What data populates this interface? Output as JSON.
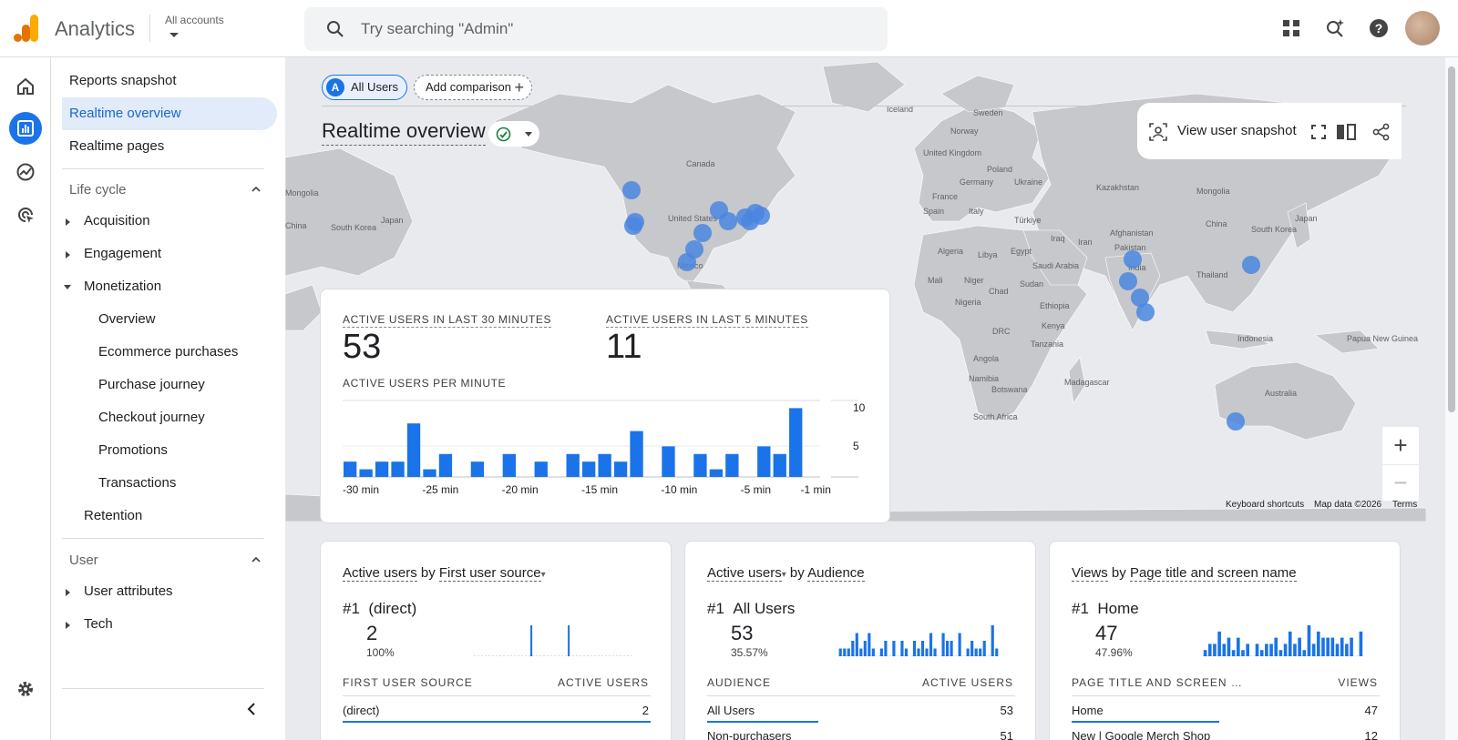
{
  "header": {
    "app_title": "Analytics",
    "account_label": "All accounts",
    "search_placeholder": "Try searching \"Admin\""
  },
  "nav": {
    "items": {
      "reports_snapshot": "Reports snapshot",
      "realtime_overview": "Realtime overview",
      "realtime_pages": "Realtime pages",
      "life_cycle": "Life cycle",
      "acquisition": "Acquisition",
      "engagement": "Engagement",
      "monetization": "Monetization",
      "overview": "Overview",
      "ecommerce_purchases": "Ecommerce purchases",
      "purchase_journey": "Purchase journey",
      "checkout_journey": "Checkout journey",
      "promotions": "Promotions",
      "transactions": "Transactions",
      "retention": "Retention",
      "user": "User",
      "user_attributes": "User attributes",
      "tech": "Tech"
    }
  },
  "main": {
    "chips": {
      "all_users_badge": "A",
      "all_users": "All Users",
      "add_comparison": "Add comparison"
    },
    "title": "Realtime overview",
    "toolbar": {
      "view_snapshot": "View user snapshot"
    },
    "map_footer": {
      "shortcuts": "Keyboard shortcuts",
      "map_data": "Map data ©2026",
      "terms": "Terms"
    },
    "map_labels": [
      {
        "t": "Canada",
        "x": 440,
        "y": 120
      },
      {
        "t": "United States",
        "x": 420,
        "y": 180
      },
      {
        "t": "Mexico",
        "x": 430,
        "y": 232
      },
      {
        "t": "Iceland",
        "x": 660,
        "y": 60
      },
      {
        "t": "Sweden",
        "x": 755,
        "y": 64
      },
      {
        "t": "Norway",
        "x": 730,
        "y": 84
      },
      {
        "t": "United Kingdom",
        "x": 700,
        "y": 108
      },
      {
        "t": "Poland",
        "x": 770,
        "y": 126
      },
      {
        "t": "Germany",
        "x": 740,
        "y": 140
      },
      {
        "t": "Ukraine",
        "x": 800,
        "y": 140
      },
      {
        "t": "France",
        "x": 710,
        "y": 156
      },
      {
        "t": "Spain",
        "x": 700,
        "y": 172
      },
      {
        "t": "Italy",
        "x": 750,
        "y": 172
      },
      {
        "t": "Kazakhstan",
        "x": 890,
        "y": 146
      },
      {
        "t": "Mongolia",
        "x": 1000,
        "y": 150
      },
      {
        "t": "Türkiye",
        "x": 800,
        "y": 182
      },
      {
        "t": "Afghanistan",
        "x": 905,
        "y": 196
      },
      {
        "t": "China",
        "x": 1010,
        "y": 186
      },
      {
        "t": "Japan",
        "x": 1108,
        "y": 180
      },
      {
        "t": "South Korea",
        "x": 1060,
        "y": 192
      },
      {
        "t": "Iraq",
        "x": 840,
        "y": 202
      },
      {
        "t": "Iran",
        "x": 870,
        "y": 206
      },
      {
        "t": "Pakistan",
        "x": 910,
        "y": 212
      },
      {
        "t": "Algeria",
        "x": 716,
        "y": 216
      },
      {
        "t": "Libya",
        "x": 760,
        "y": 220
      },
      {
        "t": "Egypt",
        "x": 796,
        "y": 216
      },
      {
        "t": "Saudi Arabia",
        "x": 820,
        "y": 232
      },
      {
        "t": "India",
        "x": 925,
        "y": 234
      },
      {
        "t": "Thailand",
        "x": 1000,
        "y": 242
      },
      {
        "t": "Mali",
        "x": 705,
        "y": 248
      },
      {
        "t": "Niger",
        "x": 745,
        "y": 248
      },
      {
        "t": "Chad",
        "x": 772,
        "y": 260
      },
      {
        "t": "Sudan",
        "x": 806,
        "y": 252
      },
      {
        "t": "Nigeria",
        "x": 735,
        "y": 272
      },
      {
        "t": "Ethiopia",
        "x": 828,
        "y": 276
      },
      {
        "t": "DRC",
        "x": 776,
        "y": 304
      },
      {
        "t": "Kenya",
        "x": 830,
        "y": 298
      },
      {
        "t": "Tanzania",
        "x": 818,
        "y": 318
      },
      {
        "t": "Indonesia",
        "x": 1045,
        "y": 312
      },
      {
        "t": "Papua New Guinea",
        "x": 1165,
        "y": 312
      },
      {
        "t": "Angola",
        "x": 755,
        "y": 334
      },
      {
        "t": "Namibia",
        "x": 750,
        "y": 356
      },
      {
        "t": "Botswana",
        "x": 775,
        "y": 368
      },
      {
        "t": "Madagascar",
        "x": 855,
        "y": 360
      },
      {
        "t": "South Africa",
        "x": 755,
        "y": 398
      },
      {
        "t": "Australia",
        "x": 1075,
        "y": 372
      },
      {
        "t": "Mongolia",
        "x": 0,
        "y": 152
      },
      {
        "t": "China",
        "x": 0,
        "y": 188
      },
      {
        "t": "Japan",
        "x": 105,
        "y": 182
      },
      {
        "t": "South Korea",
        "x": 50,
        "y": 190
      }
    ],
    "map_dots": [
      {
        "x": 380,
        "y": 146
      },
      {
        "x": 382,
        "y": 185
      },
      {
        "x": 384,
        "y": 181
      },
      {
        "x": 476,
        "y": 168
      },
      {
        "x": 486,
        "y": 180
      },
      {
        "x": 505,
        "y": 176
      },
      {
        "x": 516,
        "y": 171
      },
      {
        "x": 510,
        "y": 180
      },
      {
        "x": 522,
        "y": 174
      },
      {
        "x": 458,
        "y": 193
      },
      {
        "x": 449,
        "y": 211
      },
      {
        "x": 441,
        "y": 225
      },
      {
        "x": 930,
        "y": 222
      },
      {
        "x": 925,
        "y": 246
      },
      {
        "x": 938,
        "y": 264
      },
      {
        "x": 944,
        "y": 280
      },
      {
        "x": 1060,
        "y": 228
      },
      {
        "x": 1043,
        "y": 400
      }
    ],
    "kpis": {
      "active_30_label": "ACTIVE USERS IN LAST 30 MINUTES",
      "active_30_value": "53",
      "active_5_label": "ACTIVE USERS IN LAST 5 MINUTES",
      "active_5_value": "11",
      "per_minute_label": "ACTIVE USERS PER MINUTE"
    }
  },
  "chart_data": [
    {
      "type": "bar",
      "title": "ACTIVE USERS PER MINUTE",
      "categories": [
        "-30 min",
        "-29 min",
        "-28 min",
        "-27 min",
        "-26 min",
        "-25 min",
        "-24 min",
        "-23 min",
        "-22 min",
        "-21 min",
        "-20 min",
        "-19 min",
        "-18 min",
        "-17 min",
        "-16 min",
        "-15 min",
        "-14 min",
        "-13 min",
        "-12 min",
        "-11 min",
        "-10 min",
        "-9 min",
        "-8 min",
        "-7 min",
        "-6 min",
        "-5 min",
        "-4 min",
        "-3 min",
        "-2 min",
        "-1 min"
      ],
      "values": [
        2,
        1,
        2,
        2,
        7,
        1,
        3,
        0,
        2,
        0,
        3,
        0,
        2,
        0,
        3,
        2,
        3,
        2,
        6,
        0,
        4,
        0,
        3,
        1,
        3,
        0,
        4,
        3,
        9,
        0
      ],
      "ylim": [
        0,
        10
      ],
      "ytick_labels": [
        "10",
        "5"
      ],
      "xtick_labels": [
        "-30 min",
        "-25 min",
        "-20 min",
        "-15 min",
        "-10 min",
        "-5 min",
        "-1 min"
      ],
      "bar_color": "#1a73e8"
    },
    {
      "type": "bar",
      "title": "Active users by First user source",
      "values": [
        0,
        0,
        0,
        0,
        0,
        0,
        0,
        0,
        0,
        0,
        0,
        0,
        0,
        0,
        0,
        0,
        0,
        0,
        0,
        0,
        0,
        1,
        0,
        0,
        0,
        0,
        0,
        0,
        0,
        0,
        0,
        0,
        0,
        0,
        0,
        1,
        0,
        0,
        0,
        0,
        0,
        0,
        0,
        0,
        0,
        0,
        0,
        0,
        0,
        0,
        0,
        0,
        0,
        0,
        0,
        0,
        0,
        0,
        0,
        0
      ],
      "bar_color": "#1a73e8"
    },
    {
      "type": "bar",
      "title": "Active users by Audience",
      "values": [
        1,
        1,
        1,
        2,
        3,
        1,
        2,
        3,
        1,
        0,
        1,
        2,
        0,
        2,
        0,
        2,
        1,
        0,
        2,
        1,
        2,
        1,
        3,
        1,
        0,
        3,
        2,
        2,
        0,
        3,
        0,
        1,
        2,
        1,
        1,
        2,
        0,
        4,
        1
      ],
      "bar_color": "#1a73e8"
    },
    {
      "type": "bar",
      "title": "Views by Page title and screen name",
      "values": [
        1,
        2,
        2,
        4,
        2,
        3,
        1,
        3,
        1,
        2,
        0,
        2,
        1,
        2,
        2,
        3,
        1,
        2,
        4,
        2,
        3,
        1,
        5,
        2,
        4,
        3,
        3,
        3,
        2,
        3,
        2,
        3,
        0,
        4
      ],
      "bar_color": "#1a73e8"
    }
  ],
  "cards": [
    {
      "metric": "Active users",
      "by": " by ",
      "dimension": "First user source",
      "rank": "#1",
      "rank_label": "(direct)",
      "value": "2",
      "pct": "100%",
      "col1": "FIRST USER SOURCE",
      "col2": "ACTIVE USERS",
      "rows": [
        {
          "name": "(direct)",
          "value": "2",
          "share": 1.0
        }
      ]
    },
    {
      "metric": "Active users",
      "by": " by ",
      "dimension": "Audience",
      "rank": "#1",
      "rank_label": "All Users",
      "value": "53",
      "pct": "35.57%",
      "col1": "AUDIENCE",
      "col2": "ACTIVE USERS",
      "rows": [
        {
          "name": "All Users",
          "value": "53",
          "share": 0.36
        },
        {
          "name": "Non-purchasers",
          "value": "51",
          "share": 0.34
        }
      ]
    },
    {
      "metric": "Views",
      "by": " by ",
      "dimension": "Page title and screen name",
      "rank": "#1",
      "rank_label": "Home",
      "value": "47",
      "pct": "47.96%",
      "col1": "PAGE TITLE AND SCREEN …",
      "col2": "VIEWS",
      "rows": [
        {
          "name": "Home",
          "value": "47",
          "share": 0.48
        },
        {
          "name": "New | Google Merch Shop",
          "value": "12",
          "share": 0.12
        }
      ]
    }
  ],
  "colors": {
    "accent": "#1a73e8",
    "map_land": "#c6c8cb",
    "map_water": "#e8eaed",
    "map_dot": "#4a86e0",
    "logo_orange": "#f9ab00",
    "logo_dark_orange": "#e37400"
  },
  "icons": {
    "rail": [
      "home-icon",
      "reports-icon",
      "explore-icon",
      "advertising-icon",
      "settings-icon"
    ],
    "topbar": [
      "apps-grid-icon",
      "search-insights-icon",
      "help-icon"
    ]
  }
}
